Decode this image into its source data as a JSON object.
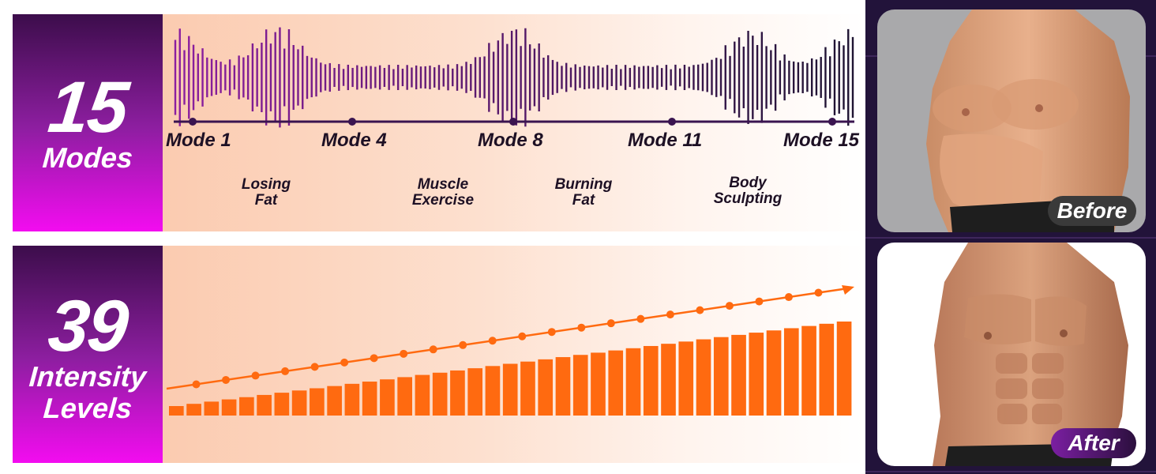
{
  "modes_panel": {
    "number": "15",
    "label": "Modes",
    "mode_labels": [
      "Mode 1",
      "Mode 4",
      "Mode 8",
      "Mode 11",
      "Mode 15"
    ],
    "descriptions": [
      "Losing\nFat",
      "Muscle\nExercise",
      "Burning\nFat",
      "Body\nSculpting"
    ]
  },
  "levels_panel": {
    "number": "39",
    "label_line1": "Intensity",
    "label_line2": "Levels",
    "bar_count": 39
  },
  "comparison": {
    "before_label": "Before",
    "after_label": "After"
  },
  "colors": {
    "accent_orange": "#ff6a10",
    "accent_purple": "#8d1ea0",
    "magenta": "#f30cf0",
    "dark_purple": "#22133a"
  }
}
